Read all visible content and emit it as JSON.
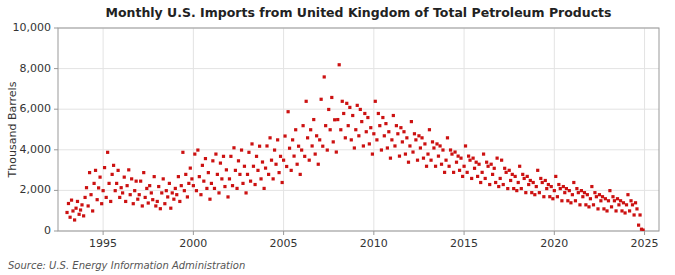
{
  "chart_data": {
    "type": "scatter",
    "title": "Monthly U.S. Imports from United Kingdom of Total Petroleum Products",
    "ylabel": "Thousand Barrels",
    "source": "Source: U.S. Energy Information Administration",
    "color": "#cc1111",
    "marker": "square",
    "grid": true,
    "xlim": [
      1992.5,
      2025.8
    ],
    "xticks": [
      1995,
      2000,
      2005,
      2010,
      2015,
      2020,
      2025
    ],
    "ylim": [
      0,
      10000
    ],
    "yticks": [
      0,
      {
        "value": 2000,
        "label": "2,000"
      },
      {
        "value": 4000,
        "label": "4,000"
      },
      {
        "value": 6000,
        "label": "6,000"
      },
      {
        "value": 8000,
        "label": "8,000"
      },
      {
        "value": 10000,
        "label": "10,000"
      }
    ],
    "x": [
      1993,
      1993.08,
      1993.17,
      1993.25,
      1993.33,
      1993.42,
      1993.5,
      1993.58,
      1993.67,
      1993.75,
      1993.83,
      1993.92,
      1994,
      1994.08,
      1994.17,
      1994.25,
      1994.33,
      1994.42,
      1994.5,
      1994.58,
      1994.67,
      1994.75,
      1994.83,
      1994.92,
      1995,
      1995.08,
      1995.17,
      1995.25,
      1995.33,
      1995.42,
      1995.5,
      1995.58,
      1995.67,
      1995.75,
      1995.83,
      1995.92,
      1996,
      1996.08,
      1996.17,
      1996.25,
      1996.33,
      1996.42,
      1996.5,
      1996.58,
      1996.67,
      1996.75,
      1996.83,
      1996.92,
      1997,
      1997.08,
      1997.17,
      1997.25,
      1997.33,
      1997.42,
      1997.5,
      1997.58,
      1997.67,
      1997.75,
      1997.83,
      1997.92,
      1998,
      1998.08,
      1998.17,
      1998.25,
      1998.33,
      1998.42,
      1998.5,
      1998.58,
      1998.67,
      1998.75,
      1998.83,
      1998.92,
      1999,
      1999.08,
      1999.17,
      1999.25,
      1999.33,
      1999.42,
      1999.5,
      1999.58,
      1999.67,
      1999.75,
      1999.83,
      1999.92,
      2000,
      2000.08,
      2000.17,
      2000.25,
      2000.33,
      2000.42,
      2000.5,
      2000.58,
      2000.67,
      2000.75,
      2000.83,
      2000.92,
      2001,
      2001.08,
      2001.17,
      2001.25,
      2001.33,
      2001.42,
      2001.5,
      2001.58,
      2001.67,
      2001.75,
      2001.83,
      2001.92,
      2002,
      2002.08,
      2002.17,
      2002.25,
      2002.33,
      2002.42,
      2002.5,
      2002.58,
      2002.67,
      2002.75,
      2002.83,
      2002.92,
      2003,
      2003.08,
      2003.17,
      2003.25,
      2003.33,
      2003.42,
      2003.5,
      2003.58,
      2003.67,
      2003.75,
      2003.83,
      2003.92,
      2004,
      2004.08,
      2004.17,
      2004.25,
      2004.33,
      2004.42,
      2004.5,
      2004.58,
      2004.67,
      2004.75,
      2004.83,
      2004.92,
      2005,
      2005.08,
      2005.17,
      2005.25,
      2005.33,
      2005.42,
      2005.5,
      2005.58,
      2005.67,
      2005.75,
      2005.83,
      2005.92,
      2006,
      2006.08,
      2006.17,
      2006.25,
      2006.33,
      2006.42,
      2006.5,
      2006.58,
      2006.67,
      2006.75,
      2006.83,
      2006.92,
      2007,
      2007.08,
      2007.17,
      2007.25,
      2007.33,
      2007.42,
      2007.5,
      2007.58,
      2007.67,
      2007.75,
      2007.83,
      2007.92,
      2008,
      2008.08,
      2008.17,
      2008.25,
      2008.33,
      2008.42,
      2008.5,
      2008.58,
      2008.67,
      2008.75,
      2008.83,
      2008.92,
      2009,
      2009.08,
      2009.17,
      2009.25,
      2009.33,
      2009.42,
      2009.5,
      2009.58,
      2009.67,
      2009.75,
      2009.83,
      2009.92,
      2010,
      2010.08,
      2010.17,
      2010.25,
      2010.33,
      2010.42,
      2010.5,
      2010.58,
      2010.67,
      2010.75,
      2010.83,
      2010.92,
      2011,
      2011.08,
      2011.17,
      2011.25,
      2011.33,
      2011.42,
      2011.5,
      2011.58,
      2011.67,
      2011.75,
      2011.83,
      2011.92,
      2012,
      2012.08,
      2012.17,
      2012.25,
      2012.33,
      2012.42,
      2012.5,
      2012.58,
      2012.67,
      2012.75,
      2012.83,
      2012.92,
      2013,
      2013.08,
      2013.17,
      2013.25,
      2013.33,
      2013.42,
      2013.5,
      2013.58,
      2013.67,
      2013.75,
      2013.83,
      2013.92,
      2014,
      2014.08,
      2014.17,
      2014.25,
      2014.33,
      2014.42,
      2014.5,
      2014.58,
      2014.67,
      2014.75,
      2014.83,
      2014.92,
      2015,
      2015.08,
      2015.17,
      2015.25,
      2015.33,
      2015.42,
      2015.5,
      2015.58,
      2015.67,
      2015.75,
      2015.83,
      2015.92,
      2016,
      2016.08,
      2016.17,
      2016.25,
      2016.33,
      2016.42,
      2016.5,
      2016.58,
      2016.67,
      2016.75,
      2016.83,
      2016.92,
      2017,
      2017.08,
      2017.17,
      2017.25,
      2017.33,
      2017.42,
      2017.5,
      2017.58,
      2017.67,
      2017.75,
      2017.83,
      2017.92,
      2018,
      2018.08,
      2018.17,
      2018.25,
      2018.33,
      2018.42,
      2018.5,
      2018.58,
      2018.67,
      2018.75,
      2018.83,
      2018.92,
      2019,
      2019.08,
      2019.17,
      2019.25,
      2019.33,
      2019.42,
      2019.5,
      2019.58,
      2019.67,
      2019.75,
      2019.83,
      2019.92,
      2020,
      2020.08,
      2020.17,
      2020.25,
      2020.33,
      2020.42,
      2020.5,
      2020.58,
      2020.67,
      2020.75,
      2020.83,
      2020.92,
      2021,
      2021.08,
      2021.17,
      2021.25,
      2021.33,
      2021.42,
      2021.5,
      2021.58,
      2021.67,
      2021.75,
      2021.83,
      2021.92,
      2022,
      2022.08,
      2022.17,
      2022.25,
      2022.33,
      2022.42,
      2022.5,
      2022.58,
      2022.67,
      2022.75,
      2022.83,
      2022.92,
      2023,
      2023.08,
      2023.17,
      2023.25,
      2023.33,
      2023.42,
      2023.5,
      2023.58,
      2023.67,
      2023.75,
      2023.83,
      2023.92,
      2024,
      2024.08,
      2024.17,
      2024.25,
      2024.33,
      2024.42,
      2024.5,
      2024.58,
      2024.67,
      2024.75,
      2024.83,
      2024.92
    ],
    "values": [
      912,
      1354,
      678,
      1521,
      987,
      543,
      1123,
      1456,
      823,
      1034,
      1287,
      745,
      1654,
      2134,
      1234,
      2876,
      1789,
      987,
      2345,
      2987,
      1543,
      2123,
      2654,
      1345,
      1987,
      3123,
      1654,
      3876,
      2345,
      1456,
      2789,
      3234,
      1987,
      2345,
      2987,
      1654,
      2134,
      1876,
      2654,
      1456,
      2234,
      3012,
      1789,
      2567,
      1345,
      1987,
      2456,
      1567,
      1789,
      2456,
      1234,
      2876,
      1654,
      2098,
      1378,
      2234,
      1876,
      1543,
      2678,
      1234,
      1456,
      2189,
      1098,
      1876,
      2567,
      1345,
      1987,
      1678,
      2345,
      1123,
      1876,
      1567,
      2098,
      1789,
      2678,
      1456,
      2234,
      3876,
      1987,
      2789,
      1678,
      2345,
      3098,
      2567,
      2234,
      3789,
      1987,
      3987,
      2678,
      1789,
      3234,
      2456,
      3567,
      2098,
      2876,
      1567,
      2345,
      3456,
      2098,
      3789,
      2789,
      1876,
      3345,
      2567,
      3678,
      2189,
      3012,
      1678,
      2567,
      3678,
      2234,
      4098,
      2987,
      2098,
      3456,
      2789,
      3987,
      2345,
      3189,
      1876,
      2789,
      3876,
      2456,
      4289,
      3189,
      2289,
      3678,
      2987,
      4178,
      2567,
      3398,
      2098,
      3098,
      4189,
      2789,
      4589,
      3489,
      2567,
      3987,
      3289,
      4489,
      2876,
      3678,
      2389,
      3489,
      4678,
      3178,
      5876,
      4078,
      2987,
      4489,
      3689,
      4987,
      3289,
      4178,
      2789,
      3987,
      5189,
      3678,
      6389,
      4589,
      3489,
      4987,
      4189,
      5489,
      3789,
      4689,
      3289,
      4489,
      6489,
      4178,
      7589,
      5189,
      3987,
      5987,
      4987,
      6578,
      4389,
      5478,
      3889,
      5489,
      8189,
      4987,
      6389,
      5789,
      4589,
      6289,
      5189,
      6089,
      4489,
      5689,
      4089,
      4989,
      6189,
      4689,
      5989,
      5389,
      4189,
      5789,
      4889,
      5589,
      4289,
      5089,
      3789,
      4789,
      6389,
      4489,
      5789,
      5189,
      3989,
      5589,
      4689,
      5289,
      4089,
      4889,
      3589,
      4489,
      5689,
      4189,
      5189,
      4789,
      3689,
      5089,
      4389,
      4889,
      3789,
      4589,
      3389,
      4189,
      5389,
      3889,
      4789,
      4489,
      3489,
      4689,
      4089,
      4589,
      3589,
      4289,
      3189,
      3789,
      4989,
      3489,
      4389,
      4089,
      3189,
      4289,
      3689,
      4189,
      3289,
      3989,
      2889,
      3489,
      4589,
      3189,
      3989,
      3789,
      2889,
      3889,
      3389,
      3689,
      2989,
      3589,
      2689,
      3189,
      4189,
      2889,
      3689,
      3489,
      2589,
      3589,
      3089,
      3389,
      2689,
      3289,
      2389,
      2889,
      3789,
      2589,
      3389,
      3189,
      2289,
      3289,
      2789,
      3089,
      2389,
      3589,
      2189,
      2589,
      3489,
      2289,
      3089,
      2889,
      2089,
      2989,
      2489,
      2789,
      2089,
      2689,
      1989,
      2389,
      3189,
      2089,
      2789,
      2589,
      1889,
      2689,
      2289,
      2489,
      1889,
      2389,
      1789,
      2189,
      2989,
      1889,
      2589,
      2389,
      1689,
      2489,
      2089,
      2289,
      1689,
      2189,
      1589,
      1989,
      2689,
      1689,
      2289,
      2089,
      1489,
      2189,
      1889,
      2089,
      1489,
      1989,
      1389,
      1789,
      2389,
      1489,
      2089,
      1889,
      1289,
      1989,
      1689,
      1889,
      1289,
      1789,
      1189,
      1589,
      2189,
      1289,
      1889,
      1689,
      1089,
      1789,
      1489,
      1689,
      1089,
      1589,
      989,
      1489,
      1989,
      1189,
      1689,
      1489,
      989,
      1589,
      1289,
      1489,
      989,
      1389,
      889,
      1289,
      1789,
      989,
      1489,
      1289,
      789,
      1389,
      1089,
      289,
      789,
      89,
      45
    ]
  }
}
